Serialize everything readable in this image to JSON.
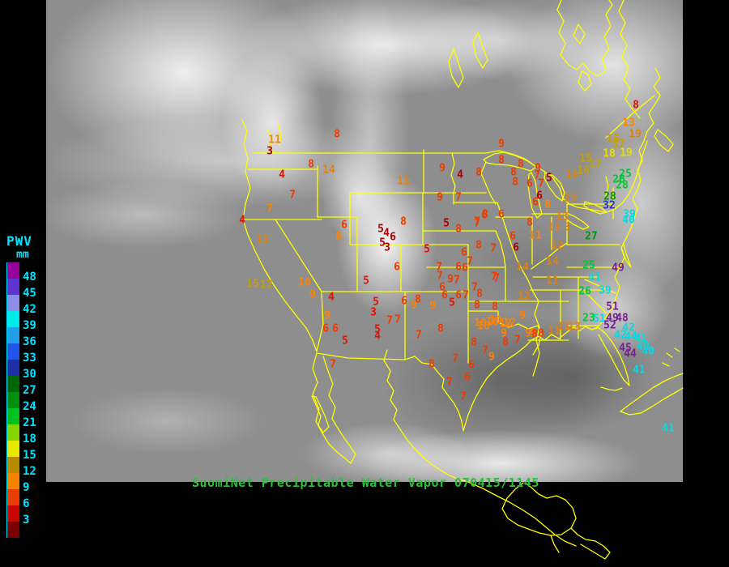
{
  "header": {
    "product": "SuomiNet Precipitable Water Vapor",
    "timestamp": "070415/1145",
    "title": "SuomiNet Precipitable Water Vapor 070415/1145",
    "title_color": "#2FBF3F"
  },
  "legend": {
    "title": "PWV",
    "unit": "mm",
    "label_color": "#00E5FF",
    "entries": [
      {
        "label": "48",
        "color": "#96009B"
      },
      {
        "label": "45",
        "color": "#5F33CC"
      },
      {
        "label": "42",
        "color": "#8C8CE8"
      },
      {
        "label": "39",
        "color": "#00E8E8"
      },
      {
        "label": "36",
        "color": "#1FA0E8"
      },
      {
        "label": "33",
        "color": "#1F55E8"
      },
      {
        "label": "30",
        "color": "#1F2FA8"
      },
      {
        "label": "27",
        "color": "#006607"
      },
      {
        "label": "24",
        "color": "#008F0F"
      },
      {
        "label": "21",
        "color": "#00C21F"
      },
      {
        "label": "18",
        "color": "#85D500"
      },
      {
        "label": "15",
        "color": "#E8E800"
      },
      {
        "label": "12",
        "color": "#B88A00"
      },
      {
        "label": "9",
        "color": "#F58200"
      },
      {
        "label": "6",
        "color": "#E83C00"
      },
      {
        "label": "3",
        "color": "#C80500"
      }
    ],
    "extra_color": "#7A0000"
  },
  "map": {
    "border_color": "#FFFF00",
    "background_color": "#000000",
    "satellite_gray": "#8e8e8e"
  },
  "station_colors": {
    "darkred": "#A80000",
    "red": "#DC1400",
    "orangered": "#EE3C00",
    "orange": "#FF8200",
    "darkorange": "#DC8214",
    "darkyellow": "#C8A000",
    "yellow": "#E6DC00",
    "green": "#00C832",
    "darkgreen": "#00960F",
    "blue": "#2832C8",
    "cyan": "#00DCE6",
    "purple": "#781E96"
  },
  "stations": [
    [
      11,
      339,
      173,
      "orange"
    ],
    [
      3,
      333,
      187,
      "darkred"
    ],
    [
      8,
      416,
      166,
      "orangered"
    ],
    [
      8,
      384,
      203,
      "orangered"
    ],
    [
      14,
      406,
      210,
      "darkorange"
    ],
    [
      4,
      348,
      216,
      "red"
    ],
    [
      7,
      361,
      241,
      "orangered"
    ],
    [
      7,
      333,
      258,
      "orange"
    ],
    [
      4,
      299,
      272,
      "red"
    ],
    [
      13,
      324,
      296,
      "darkorange"
    ],
    [
      6,
      425,
      278,
      "orangered"
    ],
    [
      8,
      418,
      292,
      "orange"
    ],
    [
      15,
      312,
      351,
      "darkyellow"
    ],
    [
      17,
      329,
      352,
      "darkyellow"
    ],
    [
      10,
      376,
      349,
      "orange"
    ],
    [
      9,
      386,
      364,
      "orange"
    ],
    [
      4,
      409,
      367,
      "red"
    ],
    [
      9,
      404,
      390,
      "orange"
    ],
    [
      6,
      402,
      406,
      "orangered"
    ],
    [
      6,
      414,
      406,
      "orangered"
    ],
    [
      5,
      426,
      421,
      "red"
    ],
    [
      7,
      411,
      450,
      "orangered"
    ],
    [
      5,
      452,
      347,
      "red"
    ],
    [
      5,
      464,
      373,
      "red"
    ],
    [
      3,
      461,
      386,
      "red"
    ],
    [
      5,
      466,
      407,
      "red"
    ],
    [
      4,
      466,
      415,
      "red"
    ],
    [
      11,
      498,
      224,
      "darkorange"
    ],
    [
      9,
      546,
      208,
      "orangered"
    ],
    [
      4,
      568,
      216,
      "darkred"
    ],
    [
      8,
      591,
      213,
      "orangered"
    ],
    [
      9,
      543,
      244,
      "orangered"
    ],
    [
      7,
      566,
      244,
      "orangered"
    ],
    [
      8,
      498,
      274,
      "orangered"
    ],
    [
      5,
      551,
      276,
      "darkred"
    ],
    [
      8,
      566,
      283,
      "orangered"
    ],
    [
      7,
      589,
      276,
      "orangered"
    ],
    [
      6,
      598,
      266,
      "orangered"
    ],
    [
      5,
      470,
      283,
      "darkred"
    ],
    [
      4,
      477,
      288,
      "darkred"
    ],
    [
      6,
      485,
      293,
      "darkred"
    ],
    [
      5,
      472,
      300,
      "darkred"
    ],
    [
      3,
      478,
      306,
      "darkred"
    ],
    [
      6,
      490,
      330,
      "orangered"
    ],
    [
      5,
      527,
      308,
      "red"
    ],
    [
      6,
      573,
      312,
      "orangered"
    ],
    [
      7,
      580,
      323,
      "orangered"
    ],
    [
      6,
      566,
      330,
      "orangered"
    ],
    [
      6,
      574,
      331,
      "orangered"
    ],
    [
      7,
      542,
      330,
      "orangered"
    ],
    [
      7,
      543,
      341,
      "orangered"
    ],
    [
      9,
      556,
      345,
      "orangered"
    ],
    [
      7,
      564,
      346,
      "orangered"
    ],
    [
      7,
      610,
      342,
      "orangered"
    ],
    [
      6,
      546,
      355,
      "orangered"
    ],
    [
      6,
      549,
      365,
      "orangered"
    ],
    [
      5,
      558,
      374,
      "red"
    ],
    [
      6,
      566,
      365,
      "orangered"
    ],
    [
      7,
      575,
      365,
      "orangered"
    ],
    [
      7,
      586,
      355,
      "orangered"
    ],
    [
      8,
      592,
      363,
      "orangered"
    ],
    [
      8,
      589,
      377,
      "orangered"
    ],
    [
      9,
      534,
      378,
      "orange"
    ],
    [
      8,
      516,
      370,
      "orangered"
    ],
    [
      6,
      499,
      372,
      "orangered"
    ],
    [
      9,
      511,
      377,
      "orange"
    ],
    [
      7,
      491,
      395,
      "orangered"
    ],
    [
      7,
      481,
      396,
      "orangered"
    ],
    [
      8,
      544,
      406,
      "orangered"
    ],
    [
      7,
      517,
      414,
      "orangered"
    ],
    [
      8,
      533,
      450,
      "orangered"
    ],
    [
      8,
      585,
      423,
      "orangered"
    ],
    [
      7,
      599,
      433,
      "orangered"
    ],
    [
      9,
      607,
      441,
      "orange"
    ],
    [
      7,
      562,
      443,
      "orangered"
    ],
    [
      6,
      582,
      451,
      "orangered"
    ],
    [
      6,
      577,
      466,
      "orangered"
    ],
    [
      7,
      555,
      472,
      "orangered"
    ],
    [
      7,
      572,
      490,
      "orangered"
    ],
    [
      10,
      597,
      403,
      "orange"
    ],
    [
      10,
      612,
      396,
      "orange"
    ],
    [
      12,
      624,
      400,
      "orange"
    ],
    [
      9,
      622,
      412,
      "orange"
    ],
    [
      8,
      624,
      423,
      "orangered"
    ],
    [
      7,
      639,
      420,
      "orangered"
    ],
    [
      9,
      658,
      412,
      "orange"
    ],
    [
      8,
      668,
      412,
      "orangered"
    ],
    [
      11,
      684,
      409,
      "darkorange"
    ],
    [
      9,
      619,
      178,
      "orangered"
    ],
    [
      8,
      619,
      198,
      "orangered"
    ],
    [
      8,
      634,
      213,
      "orangered"
    ],
    [
      8,
      636,
      225,
      "orangered"
    ],
    [
      8,
      643,
      203,
      "orangered"
    ],
    [
      9,
      664,
      208,
      "orangered"
    ],
    [
      7,
      663,
      217,
      "orangered"
    ],
    [
      5,
      678,
      220,
      "darkred"
    ],
    [
      6,
      654,
      227,
      "orangered"
    ],
    [
      7,
      668,
      227,
      "orangered"
    ],
    [
      6,
      666,
      242,
      "darkred"
    ],
    [
      8,
      676,
      253,
      "orange"
    ],
    [
      6,
      661,
      250,
      "orangered"
    ],
    [
      13,
      704,
      245,
      "darkorange"
    ],
    [
      13,
      694,
      268,
      "darkorange"
    ],
    [
      11,
      684,
      281,
      "darkorange"
    ],
    [
      3,
      700,
      281,
      "darkorange"
    ],
    [
      8,
      599,
      265,
      "orangered"
    ],
    [
      7,
      589,
      274,
      "orangered"
    ],
    [
      6,
      619,
      265,
      "orangered"
    ],
    [
      8,
      654,
      275,
      "orangered"
    ],
    [
      6,
      633,
      292,
      "orangered"
    ],
    [
      11,
      661,
      291,
      "orange"
    ],
    [
      6,
      637,
      306,
      "darkred"
    ],
    [
      7,
      609,
      307,
      "orangered"
    ],
    [
      8,
      591,
      303,
      "orangered"
    ],
    [
      12,
      688,
      304,
      "darkorange"
    ],
    [
      14,
      645,
      330,
      "darkorange"
    ],
    [
      14,
      682,
      323,
      "darkorange"
    ],
    [
      7,
      613,
      344,
      "orangered"
    ],
    [
      11,
      682,
      347,
      "darkorange"
    ],
    [
      12,
      647,
      366,
      "darkorange"
    ],
    [
      8,
      611,
      379,
      "orangered"
    ],
    [
      9,
      645,
      390,
      "orange"
    ],
    [
      10,
      593,
      399,
      "orange"
    ],
    [
      10,
      608,
      398,
      "orange"
    ],
    [
      12,
      629,
      399,
      "orange"
    ],
    [
      9,
      652,
      412,
      "orange"
    ],
    [
      8,
      660,
      413,
      "orangered"
    ],
    [
      11,
      696,
      404,
      "darkorange"
    ],
    [
      13,
      709,
      404,
      "darkorange"
    ],
    [
      8,
      785,
      130,
      "red"
    ],
    [
      13,
      776,
      152,
      "orange"
    ],
    [
      19,
      784,
      166,
      "darkorange"
    ],
    [
      15,
      757,
      172,
      "darkyellow"
    ],
    [
      17,
      764,
      178,
      "darkyellow"
    ],
    [
      15,
      723,
      196,
      "darkyellow"
    ],
    [
      17,
      735,
      203,
      "darkyellow"
    ],
    [
      16,
      720,
      211,
      "darkyellow"
    ],
    [
      14,
      706,
      216,
      "darkorange"
    ],
    [
      18,
      752,
      190,
      "yellow"
    ],
    [
      19,
      773,
      189,
      "yellow"
    ],
    [
      25,
      772,
      215,
      "green"
    ],
    [
      26,
      764,
      222,
      "green"
    ],
    [
      28,
      768,
      229,
      "green"
    ],
    [
      28,
      753,
      243,
      "darkgreen"
    ],
    [
      32,
      752,
      254,
      "blue"
    ],
    [
      39,
      777,
      265,
      "cyan"
    ],
    [
      40,
      776,
      272,
      "cyan"
    ],
    [
      27,
      730,
      292,
      "darkgreen"
    ],
    [
      25,
      727,
      328,
      "green"
    ],
    [
      49,
      763,
      331,
      "purple"
    ],
    [
      41,
      734,
      343,
      "cyan"
    ],
    [
      26,
      722,
      360,
      "green"
    ],
    [
      39,
      747,
      359,
      "cyan"
    ],
    [
      51,
      756,
      379,
      "purple"
    ],
    [
      23,
      727,
      393,
      "green"
    ],
    [
      51,
      740,
      394,
      "cyan"
    ],
    [
      49,
      756,
      393,
      "purple"
    ],
    [
      48,
      768,
      393,
      "purple"
    ],
    [
      52,
      753,
      402,
      "purple"
    ],
    [
      42,
      776,
      405,
      "cyan"
    ],
    [
      42,
      766,
      414,
      "cyan"
    ],
    [
      44,
      779,
      416,
      "cyan"
    ],
    [
      41,
      791,
      418,
      "cyan"
    ],
    [
      45,
      772,
      430,
      "purple"
    ],
    [
      40,
      794,
      428,
      "cyan"
    ],
    [
      44,
      778,
      437,
      "purple"
    ],
    [
      40,
      800,
      434,
      "cyan"
    ],
    [
      41,
      789,
      457,
      "cyan"
    ],
    [
      41,
      825,
      529,
      "cyan"
    ]
  ]
}
